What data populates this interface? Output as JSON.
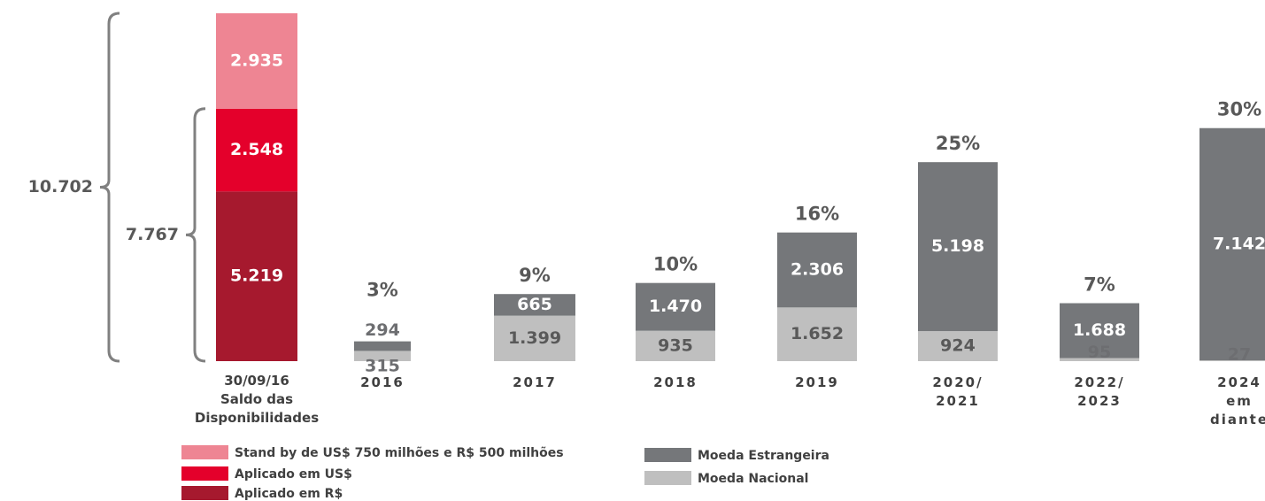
{
  "chart_data": {
    "type": "stacked_bar",
    "categories": [
      "30/09/16\nSaldo das\nDisponibilidades",
      "2016",
      "2017",
      "2018",
      "2019",
      "2020/\n2021",
      "2022/\n2023",
      "2024\nem\ndiante"
    ],
    "series": [
      {
        "name": "Aplicado em R$",
        "color": "#a6192e",
        "values": [
          5219,
          null,
          null,
          null,
          null,
          null,
          null,
          null
        ],
        "value_labels": [
          "5.219",
          null,
          null,
          null,
          null,
          null,
          null,
          null
        ]
      },
      {
        "name": "Aplicado em US$",
        "color": "#e4002b",
        "values": [
          2548,
          null,
          null,
          null,
          null,
          null,
          null,
          null
        ],
        "value_labels": [
          "2.548",
          null,
          null,
          null,
          null,
          null,
          null,
          null
        ]
      },
      {
        "name": "Stand by de US$ 750 milhões e R$ 500 milhões",
        "color": "#ee8593",
        "values": [
          2935,
          null,
          null,
          null,
          null,
          null,
          null,
          null
        ],
        "value_labels": [
          "2.935",
          null,
          null,
          null,
          null,
          null,
          null,
          null
        ]
      },
      {
        "name": "Moeda Nacional",
        "color": "#bfbfbf",
        "values": [
          null,
          315,
          1399,
          935,
          1652,
          924,
          95,
          27
        ],
        "value_labels": [
          null,
          "315",
          "1.399",
          "935",
          "1.652",
          "924",
          "95",
          "27"
        ]
      },
      {
        "name": "Moeda Estrangeira",
        "color": "#75777a",
        "values": [
          null,
          294,
          665,
          1470,
          2306,
          5198,
          1688,
          7142
        ],
        "value_labels": [
          null,
          "294",
          "665",
          "1.470",
          "2.306",
          "5.198",
          "1.688",
          "7.142"
        ]
      }
    ],
    "shares": {
      "values": [
        null,
        3,
        9,
        10,
        16,
        25,
        7,
        30
      ],
      "value_labels": [
        null,
        "3%",
        "9%",
        "10%",
        "16%",
        "25%",
        "7%",
        "30%"
      ]
    },
    "brackets": [
      {
        "value": 10702,
        "label": "10.702"
      },
      {
        "value": 7767,
        "label": "7.767"
      }
    ],
    "ylim": [
      0,
      10702
    ]
  }
}
